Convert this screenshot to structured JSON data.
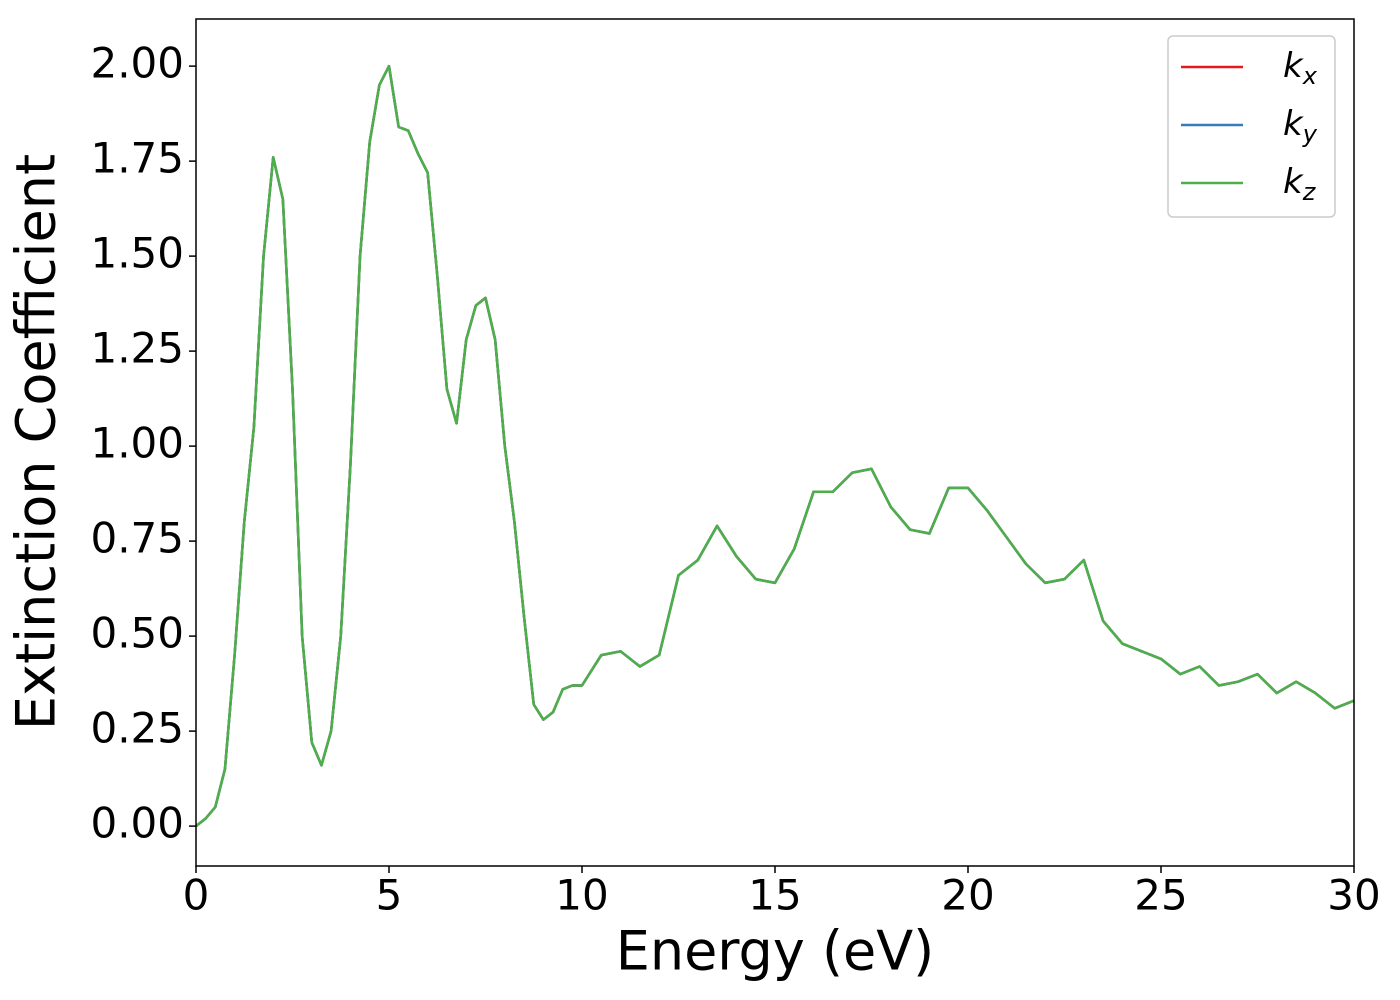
{
  "chart_data": {
    "type": "line",
    "xlabel": "Energy (eV)",
    "ylabel": "Extinction Coefficient",
    "x": [
      0,
      0.25,
      0.5,
      0.75,
      1,
      1.25,
      1.5,
      1.75,
      2,
      2.25,
      2.5,
      2.75,
      3,
      3.25,
      3.5,
      3.75,
      4,
      4.25,
      4.5,
      4.75,
      5,
      5.25,
      5.5,
      5.75,
      6,
      6.25,
      6.5,
      6.75,
      7,
      7.25,
      7.5,
      7.75,
      8,
      8.25,
      8.5,
      8.75,
      9,
      9.25,
      9.5,
      9.75,
      10,
      10.5,
      11,
      11.5,
      12,
      12.5,
      13,
      13.5,
      14,
      14.5,
      15,
      15.5,
      16,
      16.5,
      17,
      17.5,
      18,
      18.5,
      19,
      19.5,
      20,
      20.5,
      21,
      21.5,
      22,
      22.5,
      23,
      23.5,
      24,
      24.5,
      25,
      25.5,
      26,
      26.5,
      27,
      27.5,
      28,
      28.5,
      29,
      29.5,
      30
    ],
    "series": [
      {
        "name": "kx",
        "color": "#e41a1c",
        "values": [
          0,
          0.02,
          0.05,
          0.15,
          0.45,
          0.8,
          1.05,
          1.5,
          1.76,
          1.65,
          1.15,
          0.5,
          0.22,
          0.16,
          0.25,
          0.5,
          0.95,
          1.5,
          1.8,
          1.95,
          2.0,
          1.84,
          1.83,
          1.77,
          1.72,
          1.45,
          1.15,
          1.06,
          1.28,
          1.37,
          1.39,
          1.28,
          1.0,
          0.8,
          0.55,
          0.32,
          0.28,
          0.3,
          0.36,
          0.37,
          0.37,
          0.45,
          0.46,
          0.42,
          0.45,
          0.66,
          0.7,
          0.79,
          0.71,
          0.65,
          0.64,
          0.73,
          0.88,
          0.88,
          0.93,
          0.94,
          0.84,
          0.78,
          0.77,
          0.89,
          0.89,
          0.83,
          0.76,
          0.69,
          0.64,
          0.65,
          0.7,
          0.54,
          0.48,
          0.46,
          0.44,
          0.4,
          0.42,
          0.37,
          0.38,
          0.4,
          0.35,
          0.38,
          0.35,
          0.31,
          0.33
        ]
      },
      {
        "name": "ky",
        "color": "#377eb8",
        "values": [
          0,
          0.02,
          0.05,
          0.15,
          0.45,
          0.8,
          1.05,
          1.5,
          1.76,
          1.65,
          1.15,
          0.5,
          0.22,
          0.16,
          0.25,
          0.5,
          0.95,
          1.5,
          1.8,
          1.95,
          2.0,
          1.84,
          1.83,
          1.77,
          1.72,
          1.45,
          1.15,
          1.06,
          1.28,
          1.37,
          1.39,
          1.28,
          1.0,
          0.8,
          0.55,
          0.32,
          0.28,
          0.3,
          0.36,
          0.37,
          0.37,
          0.45,
          0.46,
          0.42,
          0.45,
          0.66,
          0.7,
          0.79,
          0.71,
          0.65,
          0.64,
          0.73,
          0.88,
          0.88,
          0.93,
          0.94,
          0.84,
          0.78,
          0.77,
          0.89,
          0.89,
          0.83,
          0.76,
          0.69,
          0.64,
          0.65,
          0.7,
          0.54,
          0.48,
          0.46,
          0.44,
          0.4,
          0.42,
          0.37,
          0.38,
          0.4,
          0.35,
          0.38,
          0.35,
          0.31,
          0.33
        ]
      },
      {
        "name": "kz",
        "color": "#4daf4a",
        "values": [
          0,
          0.02,
          0.05,
          0.15,
          0.45,
          0.8,
          1.05,
          1.5,
          1.76,
          1.65,
          1.15,
          0.5,
          0.22,
          0.16,
          0.25,
          0.5,
          0.95,
          1.5,
          1.8,
          1.95,
          2.0,
          1.84,
          1.83,
          1.77,
          1.72,
          1.45,
          1.15,
          1.06,
          1.28,
          1.37,
          1.39,
          1.28,
          1.0,
          0.8,
          0.55,
          0.32,
          0.28,
          0.3,
          0.36,
          0.37,
          0.37,
          0.45,
          0.46,
          0.42,
          0.45,
          0.66,
          0.7,
          0.79,
          0.71,
          0.65,
          0.64,
          0.73,
          0.88,
          0.88,
          0.93,
          0.94,
          0.84,
          0.78,
          0.77,
          0.89,
          0.89,
          0.83,
          0.76,
          0.69,
          0.64,
          0.65,
          0.7,
          0.54,
          0.48,
          0.46,
          0.44,
          0.4,
          0.42,
          0.37,
          0.38,
          0.4,
          0.35,
          0.38,
          0.35,
          0.31,
          0.33
        ]
      }
    ],
    "xlim": [
      0,
      30
    ],
    "xticks": [
      0,
      5,
      10,
      15,
      20,
      25,
      30
    ],
    "ylim": [
      -0.105,
      2.124
    ],
    "yticks": [
      {
        "value": 0,
        "label": "0.00"
      },
      {
        "value": 0.25,
        "label": "0.25"
      },
      {
        "value": 0.5,
        "label": "0.50"
      },
      {
        "value": 0.75,
        "label": "0.75"
      },
      {
        "value": 1,
        "label": "1.00"
      },
      {
        "value": 1.25,
        "label": "1.25"
      },
      {
        "value": 1.5,
        "label": "1.50"
      },
      {
        "value": 1.75,
        "label": "1.75"
      },
      {
        "value": 2,
        "label": "2.00"
      }
    ],
    "legend": "upper right"
  }
}
